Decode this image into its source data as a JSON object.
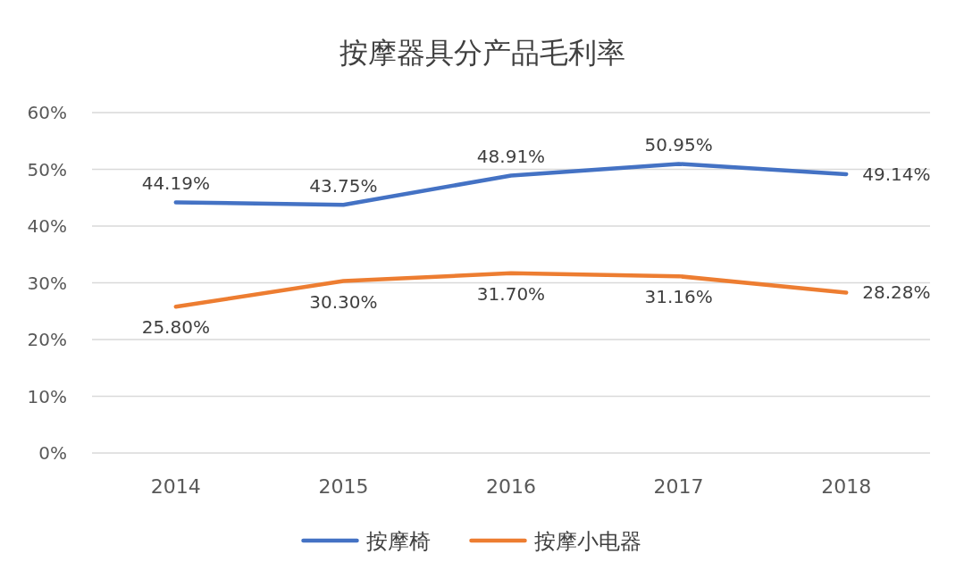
{
  "chart_data": {
    "type": "line",
    "title": "按摩器具分产品毛利率",
    "categories": [
      "2014",
      "2015",
      "2016",
      "2017",
      "2018"
    ],
    "series": [
      {
        "name": "按摩椅",
        "color": "#4472c4",
        "values": [
          44.19,
          43.75,
          48.91,
          50.95,
          49.14
        ],
        "value_labels": [
          "44.19%",
          "43.75%",
          "48.91%",
          "50.95%",
          "49.14%"
        ]
      },
      {
        "name": "按摩小电器",
        "color": "#ed7d31",
        "values": [
          25.8,
          30.3,
          31.7,
          31.16,
          28.28
        ],
        "value_labels": [
          "25.80%",
          "30.30%",
          "31.70%",
          "31.16%",
          "28.28%"
        ]
      }
    ],
    "ylim": [
      0,
      60
    ],
    "yticks": [
      {
        "value": 0,
        "label": "0%"
      },
      {
        "value": 10,
        "label": "10%"
      },
      {
        "value": 20,
        "label": "20%"
      },
      {
        "value": 30,
        "label": "30%"
      },
      {
        "value": 40,
        "label": "40%"
      },
      {
        "value": 50,
        "label": "50%"
      },
      {
        "value": 60,
        "label": "60%"
      }
    ],
    "grid": "y",
    "legend": "bottom",
    "marker": "none",
    "line_style": "solid"
  }
}
